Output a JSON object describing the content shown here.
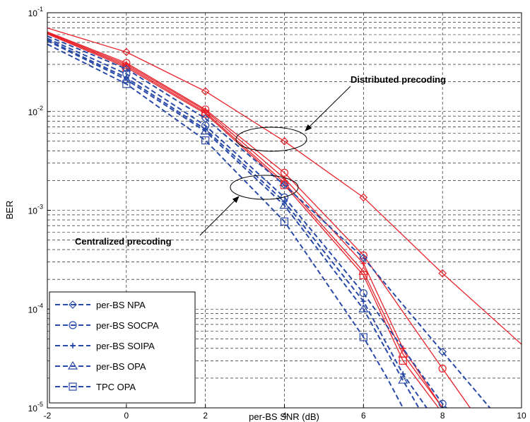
{
  "chart_data": {
    "type": "line",
    "xlabel": "per-BS SNR (dB)",
    "ylabel": "BER",
    "xlim": [
      -2,
      10
    ],
    "ylim": [
      1e-05,
      0.1
    ],
    "yscale": "log",
    "x_ticks": [
      "-2",
      "0",
      "2",
      "4",
      "6",
      "8",
      "10"
    ],
    "y_ticks": [
      {
        "base": "10",
        "exp": "-1"
      },
      {
        "base": "10",
        "exp": "-2"
      },
      {
        "base": "10",
        "exp": "-3"
      },
      {
        "base": "10",
        "exp": "-4"
      },
      {
        "base": "10",
        "exp": "-5"
      }
    ],
    "grid": true,
    "legend_position": "bottom-left",
    "colors": {
      "distributed": "#e8222a",
      "centralized": "#2a4aa8"
    },
    "legend": [
      {
        "label": "per-BS NPA",
        "marker": "diamond"
      },
      {
        "label": "per-BS SOCPA",
        "marker": "circle"
      },
      {
        "label": "per-BS SOIPA",
        "marker": "star"
      },
      {
        "label": "per-BS OPA",
        "marker": "triangle"
      },
      {
        "label": "TPC OPA",
        "marker": "square"
      }
    ],
    "annotations": [
      {
        "text": "Distributed precoding"
      },
      {
        "text": "Centralized precoding"
      }
    ],
    "series": [
      {
        "group": "distributed",
        "marker": "diamond",
        "x": [
          -2,
          0,
          2,
          4,
          6,
          8,
          10
        ],
        "y": [
          0.07,
          0.04,
          0.016,
          0.005,
          0.00135,
          0.00023,
          4.4e-05
        ]
      },
      {
        "group": "distributed",
        "marker": "circle",
        "x": [
          -2,
          0,
          2,
          4,
          6,
          8,
          8.7
        ],
        "y": [
          0.064,
          0.031,
          0.0105,
          0.0024,
          0.00035,
          2.5e-05,
          1e-05
        ]
      },
      {
        "group": "distributed",
        "marker": "star",
        "x": [
          -2,
          0,
          2,
          4,
          6,
          7,
          8
        ],
        "y": [
          0.063,
          0.03,
          0.0102,
          0.0021,
          0.00029,
          4e-05,
          1e-05
        ]
      },
      {
        "group": "distributed",
        "marker": "triangle",
        "x": [
          -2,
          0,
          2,
          4,
          6,
          7,
          8
        ],
        "y": [
          0.062,
          0.029,
          0.0098,
          0.0019,
          0.00024,
          3.5e-05,
          1e-05
        ]
      },
      {
        "group": "distributed",
        "marker": "square",
        "x": [
          -2,
          0,
          2,
          4,
          6,
          7,
          7.9
        ],
        "y": [
          0.061,
          0.028,
          0.0095,
          0.0018,
          0.00022,
          3e-05,
          1e-05
        ]
      },
      {
        "group": "centralized",
        "marker": "diamond",
        "x": [
          -2,
          0,
          2,
          4,
          6,
          8,
          9.2
        ],
        "y": [
          0.058,
          0.027,
          0.0085,
          0.0018,
          0.00033,
          3.7e-05,
          1e-05
        ]
      },
      {
        "group": "centralized",
        "marker": "circle",
        "x": [
          -2,
          0,
          2,
          4,
          6,
          8,
          8.1
        ],
        "y": [
          0.055,
          0.024,
          0.0072,
          0.00135,
          0.000145,
          1.1e-05,
          1e-05
        ]
      },
      {
        "group": "centralized",
        "marker": "star",
        "x": [
          -2,
          0,
          2,
          4,
          6,
          7,
          7.6
        ],
        "y": [
          0.053,
          0.022,
          0.0066,
          0.00122,
          0.00012,
          2.2e-05,
          1e-05
        ]
      },
      {
        "group": "centralized",
        "marker": "triangle",
        "x": [
          -2,
          0,
          2,
          4,
          6,
          7,
          7.4
        ],
        "y": [
          0.052,
          0.021,
          0.0063,
          0.00112,
          0.0001,
          1.9e-05,
          1e-05
        ]
      },
      {
        "group": "centralized",
        "marker": "square",
        "x": [
          -2,
          0,
          2,
          4,
          6,
          6.6,
          7
        ],
        "y": [
          0.048,
          0.019,
          0.0051,
          0.00077,
          5.2e-05,
          2e-05,
          1e-05
        ]
      }
    ]
  }
}
